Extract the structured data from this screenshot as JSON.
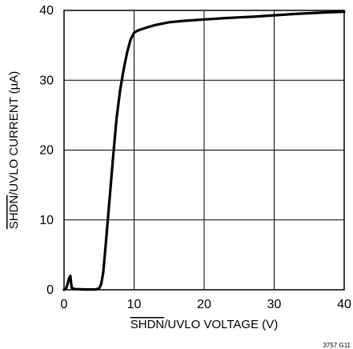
{
  "chart_data": {
    "type": "line",
    "xlabel_overline": "SHDN",
    "xlabel_rest": "/UVLO VOLTAGE (V)",
    "ylabel_overline": "SHDN",
    "ylabel_rest": "/UVLO CURRENT (µA)",
    "xlim": [
      0,
      40
    ],
    "ylim": [
      0,
      40
    ],
    "x_ticks": [
      0,
      10,
      20,
      30,
      40
    ],
    "y_ticks": [
      0,
      10,
      20,
      30,
      40
    ],
    "x_tick_labels": [
      "0",
      "10",
      "20",
      "30",
      "40"
    ],
    "y_tick_labels": [
      "0",
      "10",
      "20",
      "30",
      "40"
    ],
    "grid": true,
    "figure_code": "3757 G11",
    "series": [
      {
        "x": [
          0,
          0.3,
          0.5,
          0.7,
          0.9,
          1.0,
          1.1,
          1.5,
          3.0,
          4.5,
          5.0,
          5.3,
          5.6,
          6.0,
          6.5,
          7.0,
          7.5,
          8.0,
          8.5,
          9.0,
          9.5,
          10.0,
          10.5,
          11.0,
          12.0,
          13.0,
          14.0,
          15.0,
          17.0,
          20.0,
          23.0,
          25.0,
          27.0,
          30.0,
          33.0,
          35.0,
          37.0,
          40.0
        ],
        "y": [
          0,
          0.2,
          0.8,
          1.6,
          2.0,
          1.0,
          0.3,
          0.1,
          0.05,
          0.05,
          0.2,
          0.8,
          2.5,
          7.0,
          13.0,
          19.0,
          24.5,
          28.5,
          31.5,
          34.0,
          35.8,
          36.8,
          37.1,
          37.3,
          37.6,
          37.9,
          38.1,
          38.3,
          38.5,
          38.7,
          38.9,
          39.0,
          39.1,
          39.3,
          39.5,
          39.6,
          39.7,
          39.8
        ]
      }
    ]
  }
}
